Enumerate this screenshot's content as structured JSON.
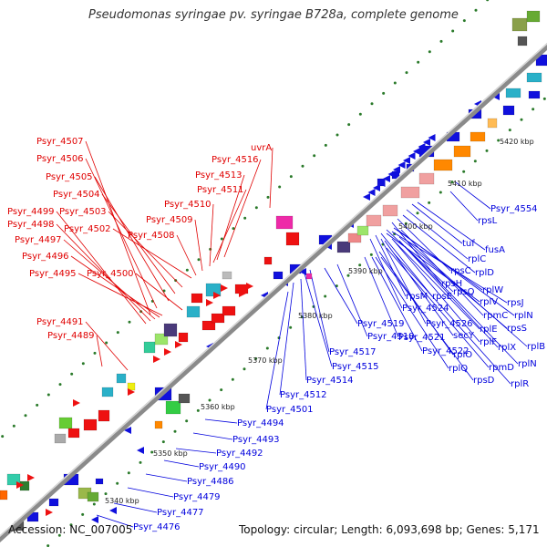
{
  "title": "Pseudomonas syringae pv. syringae B728a, complete genome",
  "footer": {
    "accession": "Accession: NC_007005",
    "summary": "Topology: circular; Length: 6,093,698 bp; Genes: 5,171"
  },
  "colors": {
    "forward_label": "#e00000",
    "reverse_label": "#0000dd",
    "backbone": "#888888",
    "tick_dot": "#2a7a2a"
  },
  "kbp_ticks": [
    "5340 kbp",
    "5350 kbp",
    "5360 kbp",
    "5370 kbp",
    "5380 kbp",
    "5390 kbp",
    "5400 kbp",
    "5410 kbp",
    "5420 kbp"
  ],
  "forward_genes": [
    "Psyr_4507",
    "Psyr_4506",
    "Psyr_4505",
    "Psyr_4504",
    "Psyr_4503",
    "Psyr_4502",
    "Psyr_4499",
    "Psyr_4498",
    "Psyr_4497",
    "Psyr_4496",
    "Psyr_4495",
    "Psyr_4500",
    "Psyr_4516",
    "Psyr_4513",
    "Psyr_4511",
    "Psyr_4510",
    "Psyr_4509",
    "Psyr_4508",
    "uvrA",
    "Psyr_4491",
    "Psyr_4489"
  ],
  "reverse_genes": [
    "Psyr_4554",
    "rpsL",
    "tuf",
    "fusA",
    "rplC",
    "rplD",
    "rpsC",
    "rpsH",
    "rplW",
    "rpsQ",
    "rpsE",
    "rpsM",
    "rplV",
    "rpsJ",
    "rplN",
    "rpmC",
    "Psyr_4524",
    "Psyr_4526",
    "secY",
    "rplE",
    "rpsS",
    "rplF",
    "rplX",
    "rplB",
    "Psyr_4519",
    "Psyr_4518",
    "Psyr_4521",
    "Psyr_4522",
    "rplO",
    "rpmD",
    "rplN",
    "Psyr_4517",
    "Psyr_4515",
    "rplQ",
    "rpsD",
    "rplR",
    "Psyr_4514",
    "Psyr_4512",
    "Psyr_4501",
    "Psyr_4494",
    "Psyr_4493",
    "Psyr_4492",
    "Psyr_4490",
    "Psyr_4486",
    "Psyr_4479",
    "Psyr_4477",
    "Psyr_4476"
  ]
}
